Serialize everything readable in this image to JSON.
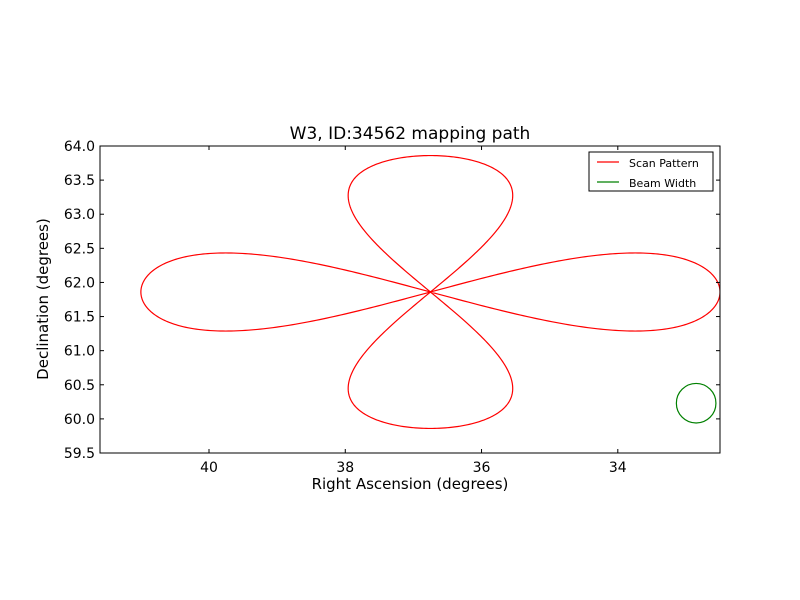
{
  "chart_data": {
    "type": "line",
    "title": "W3, ID:34562 mapping path",
    "xlabel": "Right Ascension (degrees)",
    "ylabel": "Declination (degrees)",
    "xlim": [
      41.6,
      32.5
    ],
    "ylim": [
      59.5,
      64.0
    ],
    "x_inverted": true,
    "xticks": [
      40,
      38,
      36,
      34
    ],
    "xtick_labels": [
      "40",
      "38",
      "36",
      "34"
    ],
    "yticks": [
      59.5,
      60.0,
      60.5,
      61.0,
      61.5,
      62.0,
      62.5,
      63.0,
      63.5,
      64.0
    ],
    "ytick_labels": [
      "59.5",
      "60.0",
      "60.5",
      "61.0",
      "61.5",
      "62.0",
      "62.5",
      "63.0",
      "63.5",
      "64.0"
    ],
    "grid": false,
    "legend_position": "top-right",
    "series": [
      {
        "name": "Scan Pattern",
        "color": "#ff0000",
        "shape": "four-lobe rosette",
        "center": {
          "ra": 36.75,
          "dec": 61.86
        },
        "lobes": [
          {
            "direction": "east",
            "ra_extent": 41.0,
            "dec_min": 61.32,
            "dec_max": 62.41
          },
          {
            "direction": "west",
            "ra_extent": 32.5,
            "dec_min": 61.32,
            "dec_max": 62.41
          },
          {
            "direction": "north",
            "dec_extent": 63.86,
            "ra_min": 35.6,
            "ra_max": 37.9
          },
          {
            "direction": "south",
            "dec_extent": 59.86,
            "ra_min": 35.6,
            "ra_max": 37.9
          }
        ]
      },
      {
        "name": "Beam Width",
        "color": "#008000",
        "shape": "circle",
        "center": {
          "ra": 32.85,
          "dec": 60.23
        },
        "radius_dec": 0.29
      }
    ]
  }
}
